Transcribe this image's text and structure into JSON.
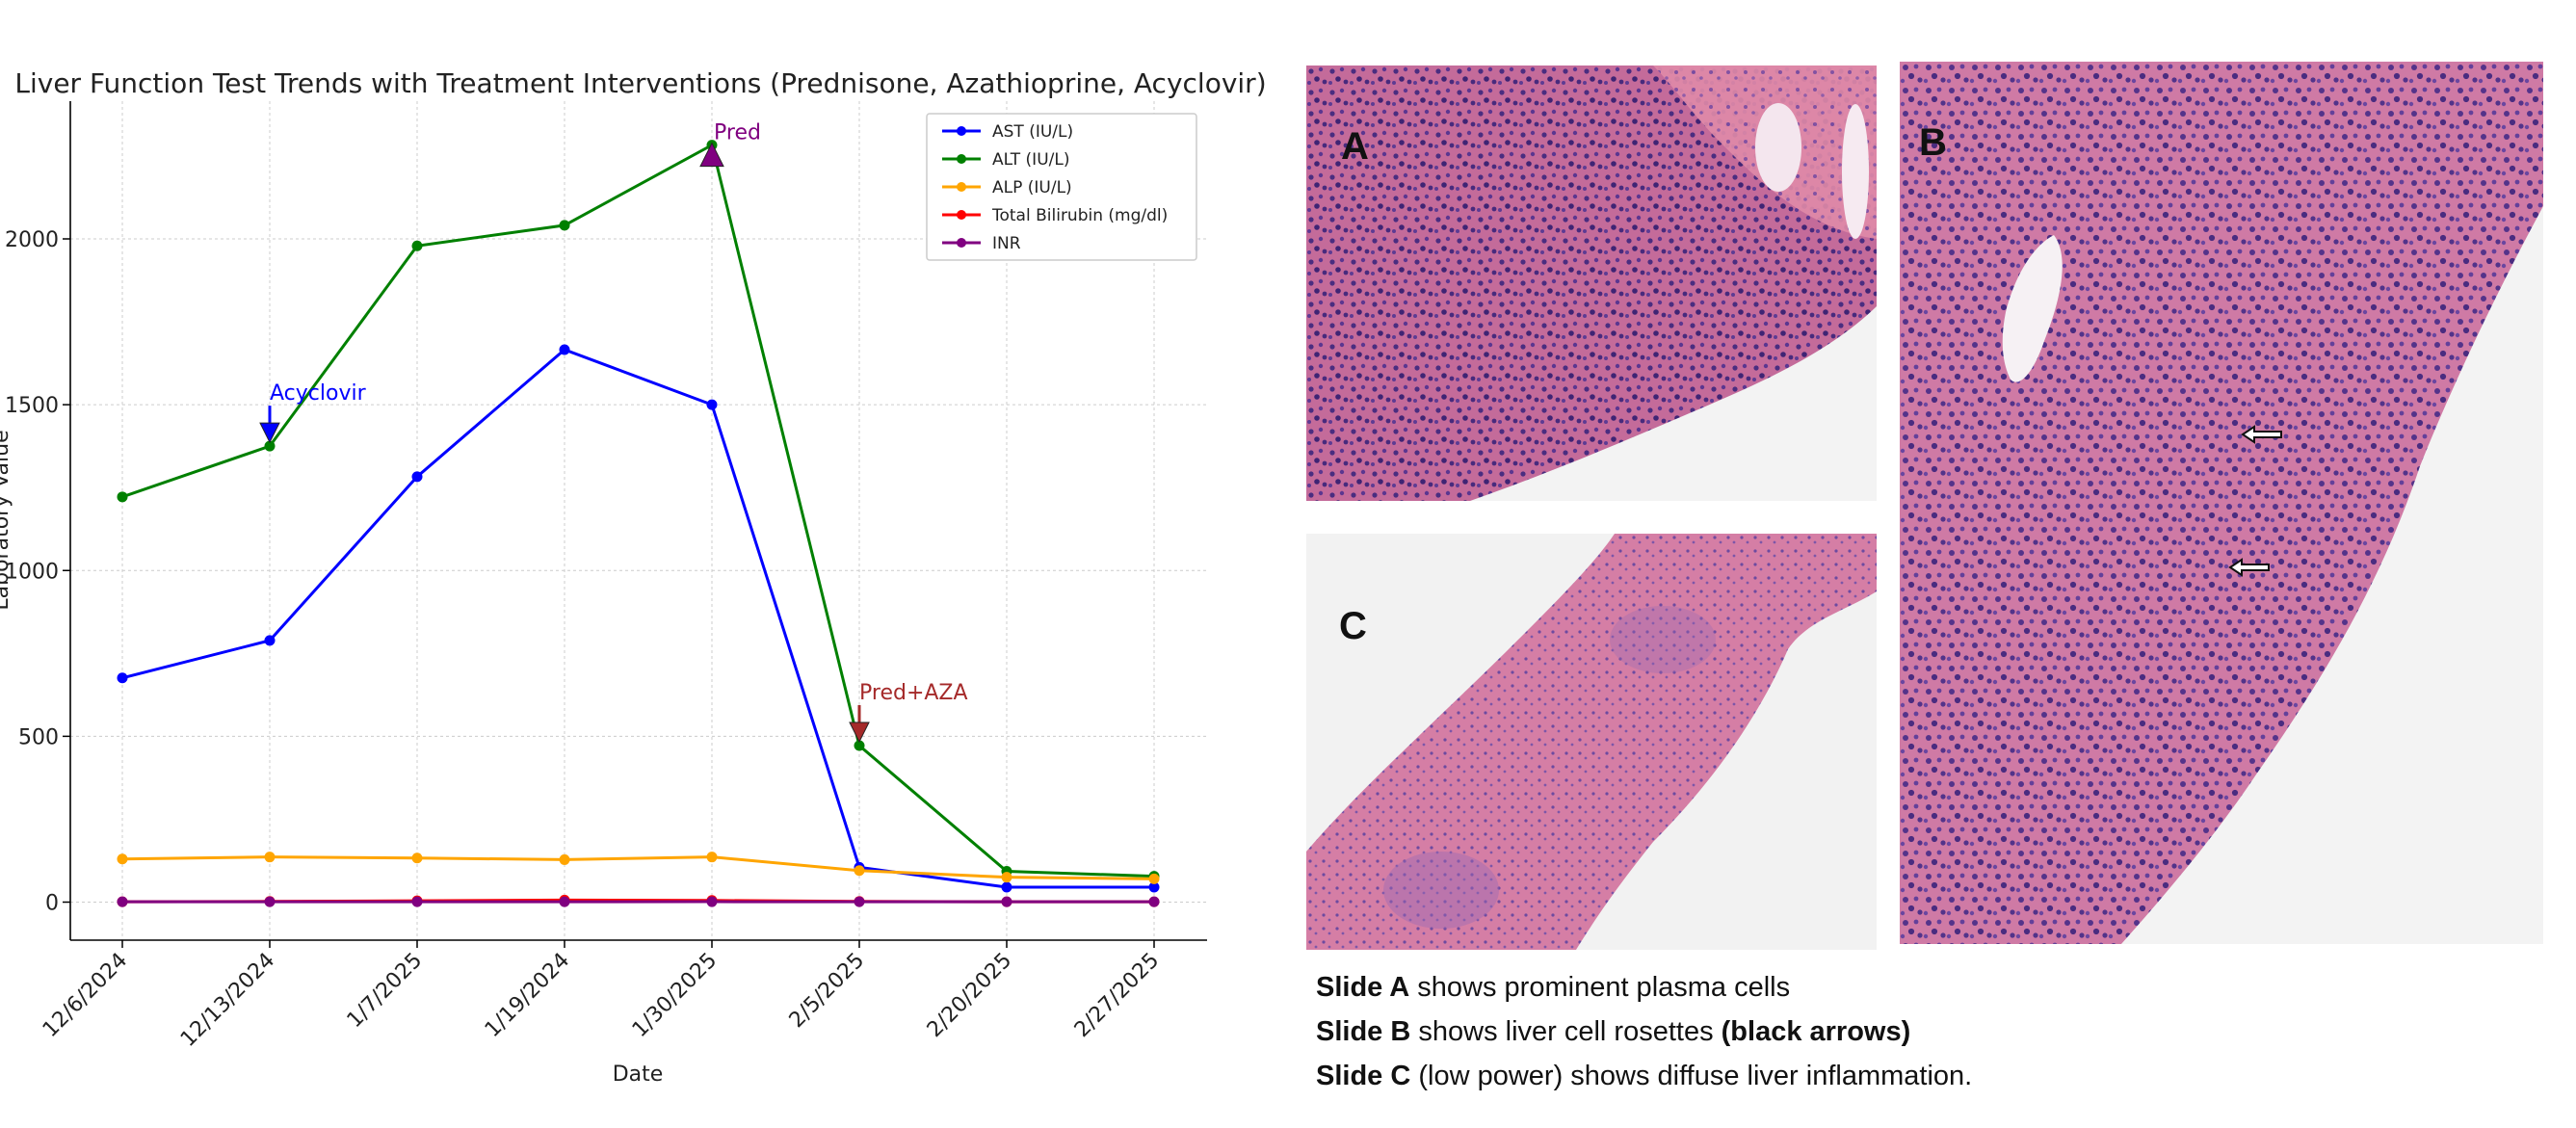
{
  "chart_data": {
    "type": "line",
    "title": "Liver Function Test Trends with Treatment Interventions (Prednisone, Azathioprine, Acyclovir)",
    "xlabel": "Date",
    "ylabel": "Laboratory Value",
    "categories": [
      "12/6/2024",
      "12/13/2024",
      "1/7/2025",
      "1/19/2024",
      "1/30/2025",
      "2/5/2025",
      "2/20/2025",
      "2/27/2025"
    ],
    "yticks": [
      0,
      500,
      1000,
      1500,
      2000
    ],
    "ylim": [
      -110,
      2400
    ],
    "grid": true,
    "legend_position": "top-right",
    "series": [
      {
        "name": "AST (IU/L)",
        "color": "#0000ff",
        "values": [
          676,
          789,
          1283,
          1666,
          1500,
          105,
          45,
          45
        ]
      },
      {
        "name": "ALT (IU/L)",
        "color": "#008000",
        "values": [
          1222,
          1375,
          1979,
          2041,
          2283,
          472,
          93,
          78
        ]
      },
      {
        "name": "ALP (IU/L)",
        "color": "#ffa500",
        "values": [
          130,
          136,
          133,
          128,
          136,
          95,
          75,
          70
        ]
      },
      {
        "name": "Total Bilirubin (mg/dl)",
        "color": "#ff0000",
        "values": [
          1,
          2,
          4,
          6,
          5,
          2,
          1,
          1
        ]
      },
      {
        "name": "INR",
        "color": "#800080",
        "values": [
          1,
          1.1,
          1.2,
          1.2,
          1.3,
          1,
          1,
          1
        ]
      }
    ],
    "annotations": [
      {
        "label": "Acyclovir",
        "category_index": 1,
        "value": 1375,
        "color": "#0000ff",
        "marker": "down-arrow"
      },
      {
        "label": "Pred",
        "category_index": 4,
        "value": 2283,
        "color": "#800080",
        "marker": "up-triangle"
      },
      {
        "label": "Pred+AZA",
        "category_index": 5,
        "value": 472,
        "color": "#a52a2a",
        "marker": "down-arrow"
      }
    ]
  },
  "slides": {
    "a_label": "A",
    "b_label": "B",
    "c_label": "C"
  },
  "captions": [
    {
      "bold": "Slide A",
      "text": " shows prominent plasma cells",
      "bold_after": ""
    },
    {
      "bold": "Slide B",
      "text": " shows  liver cell rosettes ",
      "bold_after": "(black arrows)"
    },
    {
      "bold": "Slide C",
      "text": " (low power) shows diffuse liver inflammation.",
      "bold_after": ""
    }
  ]
}
